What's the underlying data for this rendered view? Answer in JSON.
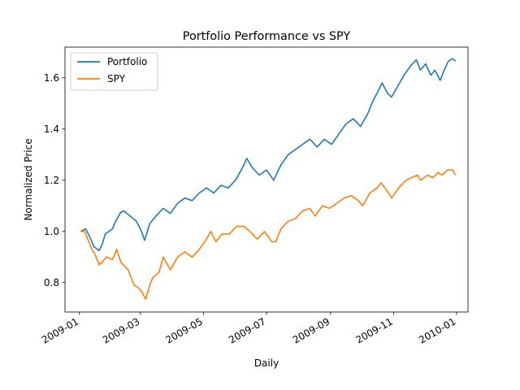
{
  "chart_data": {
    "type": "line",
    "title": "Portfolio Performance vs SPY",
    "xlabel": "Daily",
    "ylabel": "Normalized Price",
    "xlim": [
      "2008-12-18",
      "2010-01-12"
    ],
    "ylim": [
      0.685,
      1.72
    ],
    "x_ticks": [
      "2009-01",
      "2009-03",
      "2009-05",
      "2009-07",
      "2009-09",
      "2009-11",
      "2010-01"
    ],
    "y_ticks": [
      "0.8",
      "1.0",
      "1.2",
      "1.4",
      "1.6"
    ],
    "grid": false,
    "legend_position": "upper-left",
    "series": [
      {
        "name": "Portfolio",
        "color": "#1f77b4",
        "points": [
          [
            "2009-01-02",
            1.0
          ],
          [
            "2009-01-07",
            1.01
          ],
          [
            "2009-01-12",
            0.97
          ],
          [
            "2009-01-15",
            0.94
          ],
          [
            "2009-01-20",
            0.925
          ],
          [
            "2009-01-23",
            0.95
          ],
          [
            "2009-01-26",
            0.99
          ],
          [
            "2009-02-02",
            1.01
          ],
          [
            "2009-02-05",
            1.04
          ],
          [
            "2009-02-10",
            1.075
          ],
          [
            "2009-02-13",
            1.08
          ],
          [
            "2009-02-19",
            1.06
          ],
          [
            "2009-02-25",
            1.04
          ],
          [
            "2009-03-02",
            1.0
          ],
          [
            "2009-03-05",
            0.965
          ],
          [
            "2009-03-10",
            1.03
          ],
          [
            "2009-03-16",
            1.06
          ],
          [
            "2009-03-23",
            1.09
          ],
          [
            "2009-03-30",
            1.07
          ],
          [
            "2009-04-06",
            1.11
          ],
          [
            "2009-04-13",
            1.13
          ],
          [
            "2009-04-20",
            1.12
          ],
          [
            "2009-04-27",
            1.15
          ],
          [
            "2009-05-04",
            1.17
          ],
          [
            "2009-05-11",
            1.15
          ],
          [
            "2009-05-18",
            1.18
          ],
          [
            "2009-05-25",
            1.17
          ],
          [
            "2009-06-01",
            1.2
          ],
          [
            "2009-06-08",
            1.25
          ],
          [
            "2009-06-12",
            1.285
          ],
          [
            "2009-06-17",
            1.25
          ],
          [
            "2009-06-24",
            1.22
          ],
          [
            "2009-07-01",
            1.24
          ],
          [
            "2009-07-08",
            1.2
          ],
          [
            "2009-07-15",
            1.26
          ],
          [
            "2009-07-22",
            1.3
          ],
          [
            "2009-07-29",
            1.32
          ],
          [
            "2009-08-05",
            1.34
          ],
          [
            "2009-08-12",
            1.36
          ],
          [
            "2009-08-19",
            1.33
          ],
          [
            "2009-08-26",
            1.36
          ],
          [
            "2009-09-02",
            1.34
          ],
          [
            "2009-09-09",
            1.38
          ],
          [
            "2009-09-16",
            1.42
          ],
          [
            "2009-09-23",
            1.44
          ],
          [
            "2009-09-30",
            1.41
          ],
          [
            "2009-10-07",
            1.46
          ],
          [
            "2009-10-12",
            1.51
          ],
          [
            "2009-10-16",
            1.54
          ],
          [
            "2009-10-21",
            1.58
          ],
          [
            "2009-10-26",
            1.54
          ],
          [
            "2009-10-30",
            1.525
          ],
          [
            "2009-11-04",
            1.56
          ],
          [
            "2009-11-11",
            1.61
          ],
          [
            "2009-11-18",
            1.65
          ],
          [
            "2009-11-23",
            1.67
          ],
          [
            "2009-11-27",
            1.63
          ],
          [
            "2009-12-02",
            1.655
          ],
          [
            "2009-12-07",
            1.61
          ],
          [
            "2009-12-11",
            1.63
          ],
          [
            "2009-12-16",
            1.59
          ],
          [
            "2009-12-21",
            1.64
          ],
          [
            "2009-12-24",
            1.665
          ],
          [
            "2009-12-28",
            1.675
          ],
          [
            "2009-12-31",
            1.665
          ]
        ]
      },
      {
        "name": "SPY",
        "color": "#ff7f0e",
        "points": [
          [
            "2009-01-02",
            1.0
          ],
          [
            "2009-01-06",
            1.0
          ],
          [
            "2009-01-09",
            0.97
          ],
          [
            "2009-01-13",
            0.93
          ],
          [
            "2009-01-16",
            0.91
          ],
          [
            "2009-01-20",
            0.87
          ],
          [
            "2009-01-23",
            0.88
          ],
          [
            "2009-01-27",
            0.9
          ],
          [
            "2009-02-02",
            0.89
          ],
          [
            "2009-02-06",
            0.93
          ],
          [
            "2009-02-10",
            0.88
          ],
          [
            "2009-02-17",
            0.85
          ],
          [
            "2009-02-23",
            0.79
          ],
          [
            "2009-02-27",
            0.78
          ],
          [
            "2009-03-03",
            0.76
          ],
          [
            "2009-03-06",
            0.735
          ],
          [
            "2009-03-10",
            0.79
          ],
          [
            "2009-03-13",
            0.82
          ],
          [
            "2009-03-19",
            0.84
          ],
          [
            "2009-03-23",
            0.9
          ],
          [
            "2009-03-30",
            0.85
          ],
          [
            "2009-04-06",
            0.9
          ],
          [
            "2009-04-13",
            0.92
          ],
          [
            "2009-04-20",
            0.9
          ],
          [
            "2009-04-27",
            0.93
          ],
          [
            "2009-05-04",
            0.97
          ],
          [
            "2009-05-08",
            1.0
          ],
          [
            "2009-05-13",
            0.96
          ],
          [
            "2009-05-19",
            0.99
          ],
          [
            "2009-05-26",
            0.99
          ],
          [
            "2009-06-02",
            1.02
          ],
          [
            "2009-06-09",
            1.02
          ],
          [
            "2009-06-15",
            1.0
          ],
          [
            "2009-06-22",
            0.97
          ],
          [
            "2009-06-29",
            1.0
          ],
          [
            "2009-07-06",
            0.96
          ],
          [
            "2009-07-10",
            0.96
          ],
          [
            "2009-07-15",
            1.01
          ],
          [
            "2009-07-22",
            1.04
          ],
          [
            "2009-07-29",
            1.05
          ],
          [
            "2009-08-05",
            1.08
          ],
          [
            "2009-08-12",
            1.09
          ],
          [
            "2009-08-17",
            1.06
          ],
          [
            "2009-08-24",
            1.1
          ],
          [
            "2009-08-31",
            1.09
          ],
          [
            "2009-09-07",
            1.11
          ],
          [
            "2009-09-14",
            1.13
          ],
          [
            "2009-09-21",
            1.14
          ],
          [
            "2009-09-28",
            1.12
          ],
          [
            "2009-10-02",
            1.1
          ],
          [
            "2009-10-09",
            1.15
          ],
          [
            "2009-10-16",
            1.17
          ],
          [
            "2009-10-20",
            1.19
          ],
          [
            "2009-10-27",
            1.15
          ],
          [
            "2009-10-30",
            1.13
          ],
          [
            "2009-11-06",
            1.17
          ],
          [
            "2009-11-13",
            1.2
          ],
          [
            "2009-11-18",
            1.21
          ],
          [
            "2009-11-24",
            1.22
          ],
          [
            "2009-11-27",
            1.2
          ],
          [
            "2009-12-04",
            1.22
          ],
          [
            "2009-12-09",
            1.21
          ],
          [
            "2009-12-14",
            1.23
          ],
          [
            "2009-12-18",
            1.22
          ],
          [
            "2009-12-23",
            1.24
          ],
          [
            "2009-12-28",
            1.24
          ],
          [
            "2009-12-31",
            1.22
          ]
        ]
      }
    ]
  }
}
